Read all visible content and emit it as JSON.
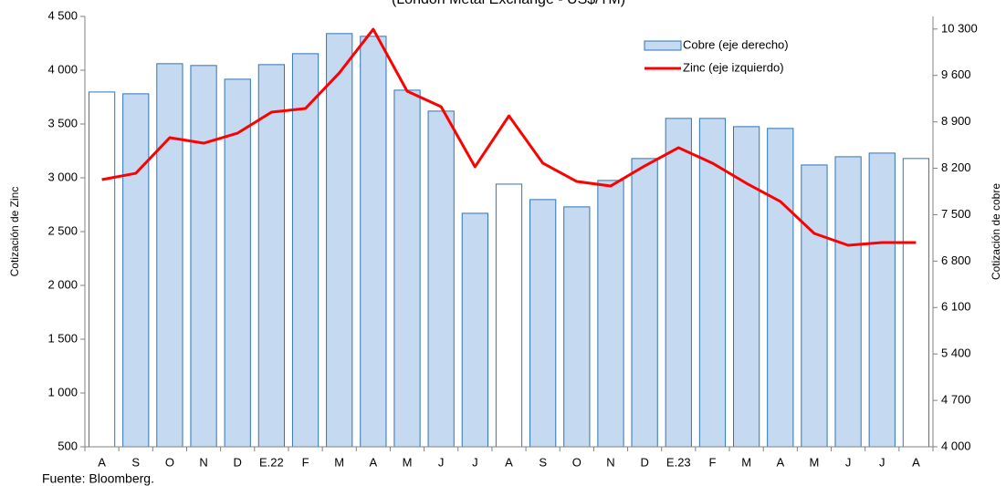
{
  "chart_data": {
    "type": "bar-line",
    "subtitle": "(London Metal Exchange - US$/TM)",
    "y_label": "Cotización de Zinc",
    "y2_label": "Cotización de cobre",
    "source": "Fuente: Bloomberg.",
    "categories": [
      "A",
      "S",
      "O",
      "N",
      "D",
      "E.22",
      "F",
      "M",
      "A",
      "M",
      "J",
      "J",
      "A",
      "S",
      "O",
      "N",
      "D",
      "E.23",
      "F",
      "M",
      "A",
      "M",
      "J",
      "J",
      "A"
    ],
    "series": [
      {
        "name": "Cobre (eje derecho)",
        "type": "bar",
        "axis": "y2",
        "color": "#c5d9f1",
        "edge_color": "#2e75b6",
        "colors": [
          "#ffffff",
          "#c5d9f1",
          "#c5d9f1",
          "#c5d9f1",
          "#c5d9f1",
          "#c5d9f1",
          "#c5d9f1",
          "#c5d9f1",
          "#c5d9f1",
          "#c5d9f1",
          "#c5d9f1",
          "#c5d9f1",
          "#ffffff",
          "#c5d9f1",
          "#c5d9f1",
          "#c5d9f1",
          "#c5d9f1",
          "#c5d9f1",
          "#c5d9f1",
          "#c5d9f1",
          "#c5d9f1",
          "#c5d9f1",
          "#c5d9f1",
          "#c5d9f1",
          "#ffffff"
        ],
        "values": [
          9350,
          9323,
          9777,
          9750,
          9543,
          9763,
          9928,
          10231,
          10190,
          9378,
          9062,
          7521,
          7961,
          7728,
          7618,
          8017,
          8347,
          8952,
          8952,
          8828,
          8801,
          8250,
          8374,
          8429,
          8347
        ]
      },
      {
        "name": "Zinc (eje izquierdo)",
        "type": "line",
        "axis": "y",
        "color": "#ff0000",
        "values": [
          2983,
          3042,
          3373,
          3322,
          3415,
          3610,
          3644,
          3975,
          4381,
          3805,
          3661,
          3102,
          3576,
          3136,
          2966,
          2924,
          3110,
          3280,
          3136,
          2949,
          2780,
          2483,
          2373,
          2398,
          2398
        ]
      }
    ],
    "ylim": [
      500,
      4500
    ],
    "yticks": [
      500,
      {
        "value": 1000,
        "label": "1 000"
      },
      {
        "value": 1500,
        "label": "1 500"
      },
      {
        "value": 2000,
        "label": "2 000"
      },
      {
        "value": 2500,
        "label": "2 500"
      },
      {
        "value": 3000,
        "label": "3 000"
      },
      {
        "value": 3500,
        "label": "3 500"
      },
      {
        "value": 4000,
        "label": "4 000"
      },
      {
        "value": 4500,
        "label": "4 500"
      }
    ],
    "y2lim": [
      4000,
      10490
    ],
    "y2ticks": [
      {
        "value": 4000,
        "label": "4 000"
      },
      {
        "value": 4700,
        "label": "4 700"
      },
      {
        "value": 5400,
        "label": "5 400"
      },
      {
        "value": 6100,
        "label": "6 100"
      },
      {
        "value": 6800,
        "label": "6 800"
      },
      {
        "value": 7500,
        "label": "7 500"
      },
      {
        "value": 8200,
        "label": "8 200"
      },
      {
        "value": 8900,
        "label": "8 900"
      },
      {
        "value": 9600,
        "label": "9 600"
      },
      {
        "value": 10300,
        "label": "10 300"
      }
    ],
    "grid": false,
    "legend": "upper right"
  }
}
